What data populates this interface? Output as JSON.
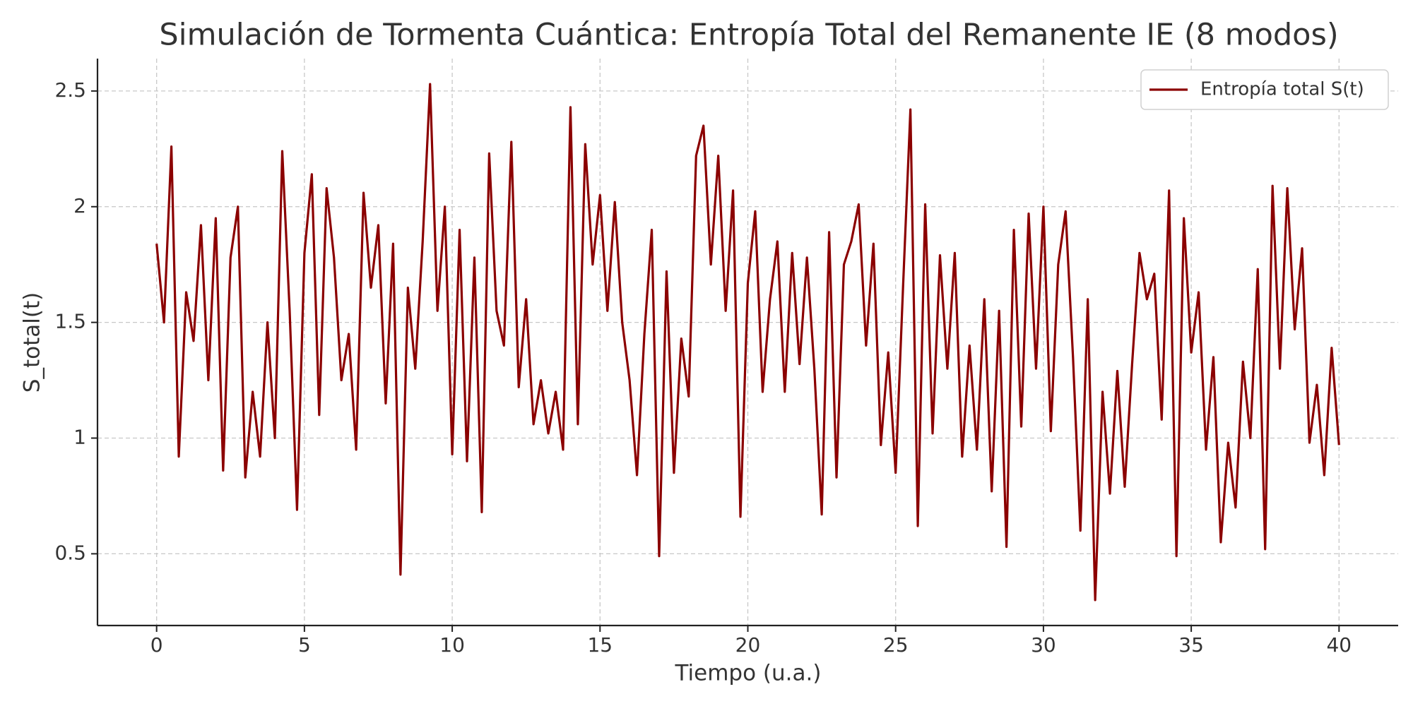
{
  "chart_data": {
    "type": "line",
    "title": "Simulación de Tormenta Cuántica: Entropía Total del Remanente IE (8 modos)",
    "xlabel": "Tiempo (u.a.)",
    "ylabel": "S_total(t)",
    "xlim": [
      -2,
      42
    ],
    "ylim": [
      0.19,
      2.64
    ],
    "xticks": [
      0,
      5,
      10,
      15,
      20,
      25,
      30,
      35,
      40
    ],
    "yticks": [
      0.5,
      1.0,
      1.5,
      2.0,
      2.5
    ],
    "grid": true,
    "legend": "upper right",
    "x": [
      0,
      0.25,
      0.5,
      0.75,
      1,
      1.25,
      1.5,
      1.75,
      2,
      2.25,
      2.5,
      2.75,
      3,
      3.25,
      3.5,
      3.75,
      4,
      4.25,
      4.5,
      4.75,
      5,
      5.25,
      5.5,
      5.75,
      6,
      6.25,
      6.5,
      6.75,
      7,
      7.25,
      7.5,
      7.75,
      8,
      8.25,
      8.5,
      8.75,
      9,
      9.25,
      9.5,
      9.75,
      10,
      10.25,
      10.5,
      10.75,
      11,
      11.25,
      11.5,
      11.75,
      12,
      12.25,
      12.5,
      12.75,
      13,
      13.25,
      13.5,
      13.75,
      14,
      14.25,
      14.5,
      14.75,
      15,
      15.25,
      15.5,
      15.75,
      16,
      16.25,
      16.5,
      16.75,
      17,
      17.25,
      17.5,
      17.75,
      18,
      18.25,
      18.5,
      18.75,
      19,
      19.25,
      19.5,
      19.75,
      20,
      20.25,
      20.5,
      20.75,
      21,
      21.25,
      21.5,
      21.75,
      22,
      22.25,
      22.5,
      22.75,
      23,
      23.25,
      23.5,
      23.75,
      24,
      24.25,
      24.5,
      24.75,
      25,
      25.25,
      25.5,
      25.75,
      26,
      26.25,
      26.5,
      26.75,
      27,
      27.25,
      27.5,
      27.75,
      28,
      28.25,
      28.5,
      28.75,
      29,
      29.25,
      29.5,
      29.75,
      30,
      30.25,
      30.5,
      30.75,
      31,
      31.25,
      31.5,
      31.75,
      32,
      32.25,
      32.5,
      32.75,
      33,
      33.25,
      33.5,
      33.75,
      34,
      34.25,
      34.5,
      34.75,
      35,
      35.25,
      35.5,
      35.75,
      36,
      36.25,
      36.5,
      36.75,
      37,
      37.25,
      37.5,
      37.75,
      38,
      38.25,
      38.5,
      38.75,
      39,
      39.25,
      39.5,
      39.75,
      40
    ],
    "series": [
      {
        "name": "Entropía total S(t)",
        "color": "#8b0000",
        "values": [
          1.84,
          1.5,
          2.26,
          0.92,
          1.63,
          1.42,
          1.92,
          1.25,
          1.95,
          0.86,
          1.78,
          2.0,
          0.83,
          1.2,
          0.92,
          1.5,
          1.0,
          2.24,
          1.55,
          0.69,
          1.8,
          2.14,
          1.1,
          2.08,
          1.78,
          1.25,
          1.45,
          0.95,
          2.06,
          1.65,
          1.92,
          1.15,
          1.84,
          0.41,
          1.65,
          1.3,
          1.85,
          2.53,
          1.55,
          2.0,
          0.93,
          1.9,
          0.9,
          1.78,
          0.68,
          2.23,
          1.55,
          1.4,
          2.28,
          1.22,
          1.6,
          1.06,
          1.25,
          1.02,
          1.2,
          0.95,
          2.43,
          1.06,
          2.27,
          1.75,
          2.05,
          1.55,
          2.02,
          1.5,
          1.25,
          0.84,
          1.45,
          1.9,
          0.49,
          1.72,
          0.85,
          1.43,
          1.18,
          2.22,
          2.35,
          1.75,
          2.22,
          1.55,
          2.07,
          0.66,
          1.67,
          1.98,
          1.2,
          1.6,
          1.85,
          1.2,
          1.8,
          1.32,
          1.78,
          1.3,
          0.67,
          1.89,
          0.83,
          1.75,
          1.85,
          2.01,
          1.4,
          1.84,
          0.97,
          1.37,
          0.85,
          1.65,
          2.42,
          0.62,
          2.01,
          1.02,
          1.79,
          1.3,
          1.8,
          0.92,
          1.4,
          0.95,
          1.6,
          0.77,
          1.55,
          0.53,
          1.9,
          1.05,
          1.97,
          1.3,
          2.0,
          1.03,
          1.75,
          1.98,
          1.35,
          0.6,
          1.6,
          0.3,
          1.2,
          0.76,
          1.29,
          0.79,
          1.32,
          1.8,
          1.6,
          1.71,
          1.08,
          2.07,
          0.49,
          1.95,
          1.37,
          1.63,
          0.95,
          1.35,
          0.55,
          0.98,
          0.7,
          1.33,
          1.0,
          1.73,
          0.52,
          2.09,
          1.3,
          2.08,
          1.47,
          1.82,
          0.98,
          1.23,
          0.84,
          1.39,
          0.97
        ]
      }
    ]
  }
}
